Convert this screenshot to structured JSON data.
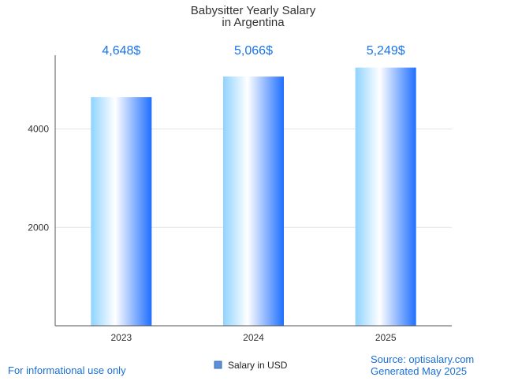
{
  "chart_data": {
    "type": "bar",
    "title": [
      "Babysitter Yearly Salary",
      "in Argentina"
    ],
    "categories": [
      "2023",
      "2024",
      "2025"
    ],
    "values": [
      4648,
      5066,
      5249
    ],
    "value_labels": [
      "4,648$",
      "5,066$",
      "5,249$"
    ],
    "series": [
      {
        "name": "Salary in USD",
        "values": [
          4648,
          5066,
          5249
        ]
      }
    ],
    "xlabel": "",
    "ylabel": "",
    "ylim": [
      0,
      5500
    ],
    "yticks": [
      2000,
      4000
    ],
    "grid": true,
    "legend": "bottom-center"
  },
  "colors": {
    "bar_light": "#8fd3ff",
    "bar_white": "#ffffff",
    "bar_dark": "#1f6fff",
    "legend_swatch": "#5b8fd6",
    "value_label": "#1a73e8"
  },
  "footer": {
    "note": "For informational use only",
    "source": "Source: optisalary.com",
    "generated": "Generated May 2025"
  }
}
